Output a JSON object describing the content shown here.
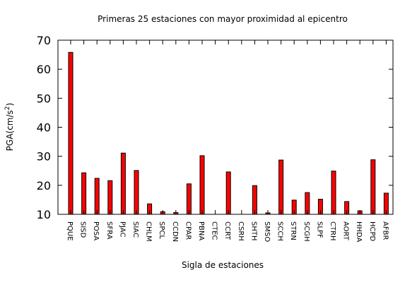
{
  "chart_data": {
    "type": "bar",
    "title": "Primeras 25 estaciones con mayor proximidad al epicentro",
    "xlabel": "Sigla de estaciones",
    "ylabel": "PGA(cm/s",
    "ylabel_sup": "2",
    "ylabel_close": ")",
    "ylim": [
      10,
      70
    ],
    "yticks": [
      10,
      20,
      30,
      40,
      50,
      60,
      70
    ],
    "grid": false,
    "legend": "none",
    "bar_color": "#ff0000",
    "categories": [
      "PQUE",
      "SISD",
      "POSA",
      "SFRA",
      "PJAC",
      "SIAC",
      "CHLM",
      "SPCL",
      "CCDN",
      "CPAR",
      "PBNA",
      "CTEC",
      "CCRT",
      "CSRH",
      "SHTH",
      "SMSO",
      "SCCH",
      "STRN",
      "SCGH",
      "SLPF",
      "CTRH",
      "AORT",
      "HHDA",
      "HCPD",
      "AFBR"
    ],
    "values": [
      65.8,
      24.3,
      22.4,
      21.6,
      31.1,
      25.1,
      13.6,
      10.9,
      10.6,
      20.5,
      30.2,
      9.6,
      24.6,
      9.5,
      19.9,
      10.5,
      28.7,
      14.9,
      17.5,
      15.2,
      24.9,
      14.4,
      11.2,
      28.8,
      17.3
    ]
  }
}
